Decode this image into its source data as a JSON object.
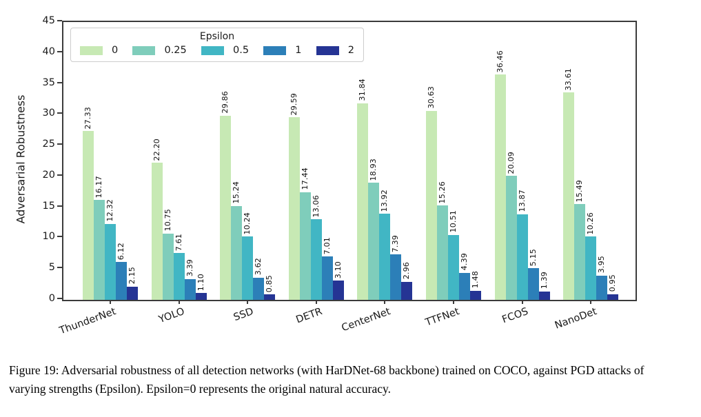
{
  "figure": {
    "caption": "Figure 19: Adversarial robustness of all detection networks (with HarDNet-68 backbone) trained on COCO, against PGD attacks of varying strengths (Epsilon). Epsilon=0 represents the original natural accuracy."
  },
  "chart_data": {
    "type": "bar",
    "title": "",
    "xlabel": "",
    "ylabel": "Adversarial Robustness",
    "ylim": [
      0,
      45
    ],
    "yticks": [
      0,
      5,
      10,
      15,
      20,
      25,
      30,
      35,
      40,
      45
    ],
    "grid": false,
    "bar_label_format": "2dp",
    "legend": {
      "title": "Epsilon",
      "position": "upper left"
    },
    "categories": [
      "ThunderNet",
      "YOLO",
      "SSD",
      "DETR",
      "CenterNet",
      "TTFNet",
      "FCOS",
      "NanoDet"
    ],
    "series": [
      {
        "name": "0",
        "color": "#c7e9b4",
        "values": [
          27.33,
          22.2,
          29.86,
          29.59,
          31.84,
          30.63,
          36.46,
          33.61
        ]
      },
      {
        "name": "0.25",
        "color": "#7fcdbb",
        "values": [
          16.17,
          10.75,
          15.24,
          17.44,
          18.93,
          15.26,
          20.09,
          15.49
        ]
      },
      {
        "name": "0.5",
        "color": "#41b6c4",
        "values": [
          12.32,
          7.61,
          10.24,
          13.06,
          13.92,
          10.51,
          13.87,
          10.26
        ]
      },
      {
        "name": "1",
        "color": "#2c7fb8",
        "values": [
          6.12,
          3.39,
          3.62,
          7.01,
          7.39,
          4.39,
          5.15,
          3.95
        ]
      },
      {
        "name": "2",
        "color": "#253494",
        "values": [
          2.15,
          1.1,
          0.85,
          3.1,
          2.96,
          1.48,
          1.39,
          0.95
        ]
      }
    ]
  }
}
